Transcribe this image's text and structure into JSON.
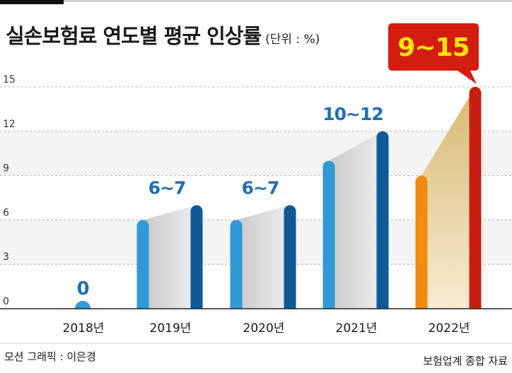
{
  "title": {
    "main": "실손보험료 연도별 평균 인상률",
    "unit": "(단위 : %)"
  },
  "credits": {
    "graphic": "모션 그래픽 : 이은경",
    "source": "보험업계 종합 자료"
  },
  "colors": {
    "blue_light": "#2f9ad6",
    "blue_dark": "#0d5a97",
    "orange": "#f08a10",
    "red": "#c81e12",
    "label_blue": "#1f6fb5",
    "callout_red": "#d31d10",
    "callout_text": "#ffe600",
    "grid_band": "#f4f4f4"
  },
  "chart_data": {
    "type": "bar",
    "title": "실손보험료 연도별 평균 인상률",
    "unit": "(단위 : %)",
    "ylim": [
      0,
      15
    ],
    "yticks": [
      0,
      3,
      6,
      9,
      12,
      15
    ],
    "grid": true,
    "categories": [
      "2018년",
      "2019년",
      "2020년",
      "2021년",
      "2022년"
    ],
    "series": [
      {
        "values": [
          0,
          6,
          6,
          10,
          9
        ]
      },
      {
        "values": [
          0,
          7,
          7,
          12,
          15
        ]
      }
    ],
    "labels": [
      "0",
      "6~7",
      "6~7",
      "10~12",
      "9~15"
    ],
    "highlight": "2022년"
  }
}
